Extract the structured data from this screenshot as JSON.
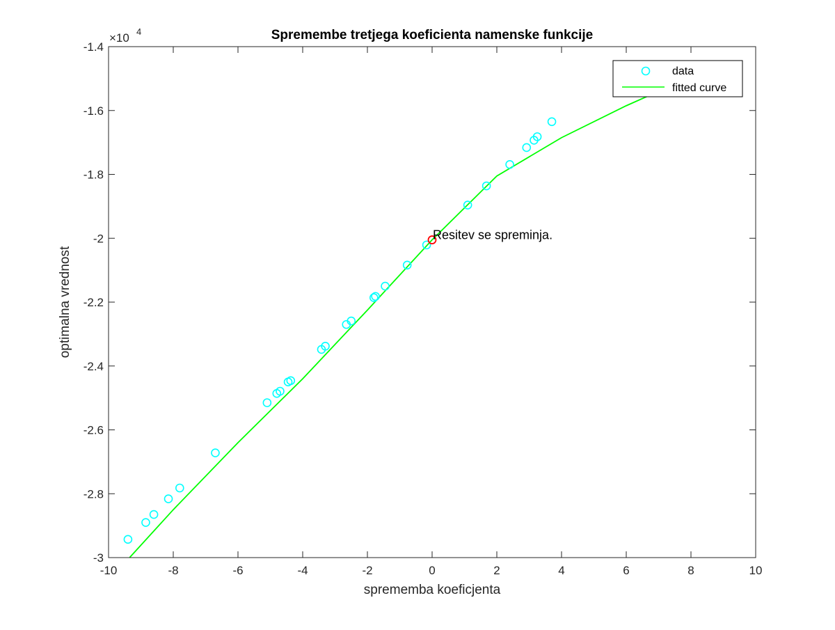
{
  "chart_data": {
    "type": "scatter",
    "title": "Spremembe tretjega koeficienta namenske funkcije",
    "xlabel": "sprememba koeficjenta",
    "ylabel": "optimalna vrednost",
    "xlim": [
      -10,
      10
    ],
    "ylim": [
      -30000,
      -14000
    ],
    "y_exponent_label": "×10",
    "y_exponent_power": "4",
    "x_ticks": [
      -10,
      -8,
      -6,
      -4,
      -2,
      0,
      2,
      4,
      6,
      8,
      10
    ],
    "x_tick_labels": [
      "-10",
      "-8",
      "-6",
      "-4",
      "-2",
      "0",
      "2",
      "4",
      "6",
      "8",
      "10"
    ],
    "y_ticks": [
      -30000,
      -28000,
      -26000,
      -24000,
      -22000,
      -20000,
      -18000,
      -16000,
      -14000
    ],
    "y_tick_labels": [
      "-3",
      "-2.8",
      "-2.6",
      "-2.4",
      "-2.2",
      "-2",
      "-1.8",
      "-1.6",
      "-1.4"
    ],
    "grid": false,
    "legend_position": "top-right",
    "series": [
      {
        "name": "data",
        "kind": "markers",
        "color": "#00ffff",
        "points": [
          [
            -9.4,
            -29430
          ],
          [
            -8.85,
            -28900
          ],
          [
            -8.6,
            -28650
          ],
          [
            -8.15,
            -28160
          ],
          [
            -7.8,
            -27820
          ],
          [
            -6.7,
            -26720
          ],
          [
            -5.1,
            -25150
          ],
          [
            -4.8,
            -24860
          ],
          [
            -4.7,
            -24790
          ],
          [
            -4.45,
            -24500
          ],
          [
            -4.37,
            -24460
          ],
          [
            -3.42,
            -23480
          ],
          [
            -3.3,
            -23380
          ],
          [
            -2.65,
            -22700
          ],
          [
            -2.5,
            -22590
          ],
          [
            -1.8,
            -21860
          ],
          [
            -1.75,
            -21820
          ],
          [
            -1.45,
            -21500
          ],
          [
            -0.77,
            -20840
          ],
          [
            -0.17,
            -20210
          ],
          [
            1.1,
            -18960
          ],
          [
            1.68,
            -18360
          ],
          [
            2.4,
            -17690
          ],
          [
            2.92,
            -17160
          ],
          [
            3.15,
            -16930
          ],
          [
            3.25,
            -16820
          ],
          [
            3.7,
            -16350
          ]
        ]
      },
      {
        "name": "fitted curve",
        "kind": "line",
        "color": "#00ff00",
        "points": [
          [
            -9.35,
            -30000
          ],
          [
            -8,
            -28500
          ],
          [
            -6,
            -26400
          ],
          [
            -4,
            -24400
          ],
          [
            -2,
            -22250
          ],
          [
            0,
            -20050
          ],
          [
            2,
            -18050
          ],
          [
            4,
            -16850
          ],
          [
            6,
            -15850
          ],
          [
            7,
            -15400
          ]
        ]
      }
    ],
    "highlight_point": {
      "x": 0,
      "y": -20050,
      "color": "#ff0000"
    },
    "annotation": {
      "text": "Resitev se spreminja.",
      "x": 0,
      "y": -20050
    }
  }
}
